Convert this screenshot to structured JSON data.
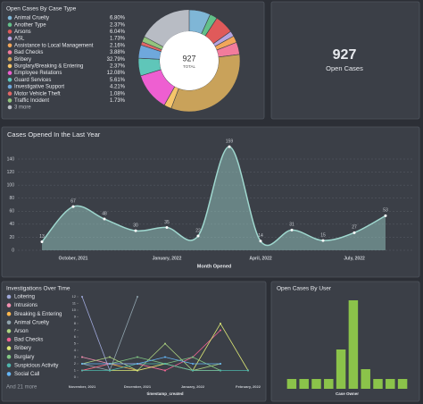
{
  "chart_data": [
    {
      "type": "donut",
      "title": "Open Cases By Case Type",
      "total": 927,
      "total_label": "TOTAL",
      "more_label": "3 more",
      "rest_color": "#b8bcc4",
      "categories": [
        "Animal Cruelty",
        "Another Type",
        "Arsons",
        "ASL",
        "Assistance to Local Management",
        "Bad Checks",
        "Bribery",
        "Burglary/Breaking & Entering",
        "Employee Relations",
        "Guard Services",
        "Investigative Support",
        "Motor Vehicle Theft",
        "Traffic Incident"
      ],
      "values": [
        6.8,
        2.37,
        6.04,
        1.73,
        2.16,
        3.88,
        32.79,
        2.37,
        12.08,
        5.61,
        4.21,
        1.08,
        1.73
      ],
      "value_labels": [
        "6.80%",
        "2.37%",
        "6.04%",
        "1.73%",
        "2.16%",
        "3.88%",
        "32.79%",
        "2.37%",
        "12.08%",
        "5.61%",
        "4.21%",
        "1.08%",
        "1.73%"
      ],
      "colors": [
        "#7fb6d6",
        "#63c08a",
        "#e05a5a",
        "#b6a4e0",
        "#f2a65a",
        "#f27c9c",
        "#c9a25a",
        "#f6c56b",
        "#ee5fd1",
        "#5fc6b9",
        "#6fa8dc",
        "#e06666",
        "#93c47d"
      ]
    },
    {
      "type": "area",
      "title": "Cases Opened In the Last Year",
      "x_label": "Month Opened",
      "categories": [
        null,
        "October, 2021",
        null,
        null,
        "January, 2022",
        null,
        null,
        "April, 2022",
        null,
        null,
        "July, 2022",
        null
      ],
      "values": [
        13,
        67,
        48,
        30,
        35,
        22,
        159,
        14,
        31,
        15,
        27,
        53
      ],
      "color": "#9fd8cf",
      "ylim": [
        0,
        165
      ],
      "yticks": [
        0,
        20,
        40,
        60,
        80,
        100,
        120,
        140
      ],
      "grid": true
    },
    {
      "type": "line",
      "title": "Investigations Over Time",
      "x_label": "timestamp_created",
      "more_label": "And 21 more",
      "categories": [
        "November, 2021",
        null,
        "December, 2021",
        null,
        "January, 2022",
        null,
        "February, 2022"
      ],
      "ylim": [
        0,
        12
      ],
      "yticks": [
        0,
        1,
        2,
        3,
        4,
        5,
        6,
        7,
        8,
        9,
        10,
        11,
        12
      ],
      "series": [
        {
          "name": "Loitering",
          "color": "#9fa8da",
          "values": [
            12,
            1,
            null,
            null,
            null,
            null,
            null
          ]
        },
        {
          "name": "Intrusions",
          "color": "#f48fb1",
          "values": [
            3,
            2,
            2,
            1,
            null,
            null,
            null
          ]
        },
        {
          "name": "Breaking & Entering",
          "color": "#ffb74d",
          "values": [
            1,
            2,
            1,
            2,
            1,
            1,
            null
          ]
        },
        {
          "name": "Animal Cruelty",
          "color": "#90a4ae",
          "values": [
            2,
            1,
            12,
            null,
            null,
            null,
            null
          ]
        },
        {
          "name": "Arson",
          "color": "#aed581",
          "values": [
            2,
            3,
            1,
            5,
            1,
            2,
            null
          ]
        },
        {
          "name": "Bad Checks",
          "color": "#f06292",
          "values": [
            1,
            2,
            2,
            1,
            3,
            7,
            null
          ]
        },
        {
          "name": "Bribery",
          "color": "#dce775",
          "values": [
            null,
            1,
            1,
            2,
            1,
            8,
            1
          ]
        },
        {
          "name": "Burglary",
          "color": "#81c784",
          "values": [
            null,
            2,
            3,
            2,
            3,
            1,
            null
          ]
        },
        {
          "name": "Suspicious Activity",
          "color": "#4db6ac",
          "values": [
            1,
            1,
            2,
            2,
            1,
            1,
            1
          ]
        },
        {
          "name": "Social Call",
          "color": "#64b5f6",
          "values": [
            2,
            2,
            2,
            3,
            2,
            2,
            null
          ]
        }
      ]
    },
    {
      "type": "bar",
      "title": "Open Cases By User",
      "x_label": "Case Owner",
      "color": "#8bc34a",
      "values": [
        1,
        1,
        1,
        1,
        4,
        9,
        2,
        1,
        1,
        1
      ],
      "ylim": [
        0,
        10
      ]
    }
  ],
  "card": {
    "value": 927,
    "label": "Open Cases"
  }
}
